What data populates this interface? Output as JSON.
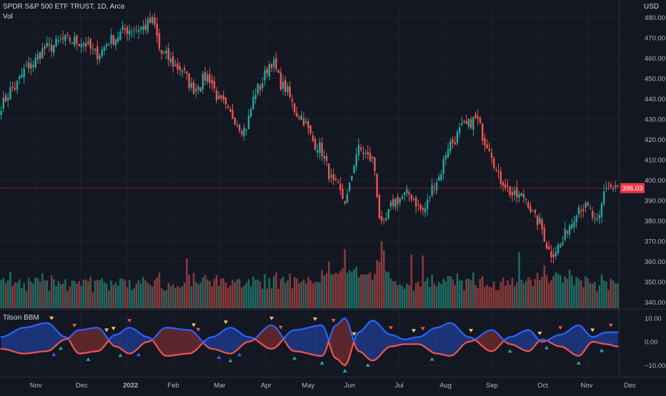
{
  "header": {
    "title": "SPDR S&P 500 ETF TRUST, 1D, Arca",
    "volume_label": "Vol",
    "indicator_label": "Tilson BBM",
    "price_unit": "USD"
  },
  "colors": {
    "background": "#131722",
    "up": "#26a69a",
    "down": "#ef5350",
    "up_volume": "#1f6b63",
    "down_volume": "#8a3a3a",
    "grid": "#1e222d",
    "last_price": "#f23645",
    "bbm_blue": "#2962ff",
    "bbm_red": "#ef5350",
    "bbm_blue_fill": "#1e3a8a",
    "bbm_red_fill": "#6b2a2e",
    "signal_yellow": "#f5c26b",
    "signal_red": "#ef5350",
    "signal_green": "#26a69a",
    "signal_blue": "#2962ff"
  },
  "chart_data": [
    {
      "type": "candlestick",
      "title": "SPDR S&P 500 ETF TRUST, 1D, Arca",
      "price_axis_ticks": [
        "480.00",
        "470.00",
        "460.00",
        "450.00",
        "440.00",
        "430.00",
        "420.00",
        "410.00",
        "400.00",
        "390.00",
        "380.00",
        "370.00",
        "360.00",
        "350.00",
        "340.00"
      ],
      "price_axis_values": [
        480,
        470,
        460,
        450,
        440,
        430,
        420,
        410,
        400,
        390,
        380,
        370,
        360,
        350,
        340
      ],
      "ylim": [
        337,
        485
      ],
      "last_price": "396.03",
      "last_price_value": 396.03,
      "time_axis_labels": [
        "Nov",
        "Dec",
        "2022",
        "Feb",
        "Mar",
        "Apr",
        "May",
        "Jun",
        "Jul",
        "Aug",
        "Sep",
        "Oct",
        "Nov",
        "Dec"
      ],
      "bar_count": 270,
      "anchors": [
        [
          0,
          437
        ],
        [
          5,
          445
        ],
        [
          12,
          456
        ],
        [
          20,
          465
        ],
        [
          28,
          469
        ],
        [
          35,
          468
        ],
        [
          42,
          462
        ],
        [
          48,
          469
        ],
        [
          55,
          474
        ],
        [
          62,
          475
        ],
        [
          66,
          478
        ],
        [
          70,
          462
        ],
        [
          78,
          455
        ],
        [
          84,
          445
        ],
        [
          90,
          451
        ],
        [
          96,
          438
        ],
        [
          100,
          432
        ],
        [
          106,
          425
        ],
        [
          112,
          445
        ],
        [
          118,
          458
        ],
        [
          123,
          446
        ],
        [
          130,
          432
        ],
        [
          138,
          417
        ],
        [
          146,
          397
        ],
        [
          150,
          390
        ],
        [
          156,
          415
        ],
        [
          162,
          410
        ],
        [
          166,
          377
        ],
        [
          172,
          390
        ],
        [
          178,
          393
        ],
        [
          184,
          385
        ],
        [
          190,
          400
        ],
        [
          196,
          418
        ],
        [
          202,
          426
        ],
        [
          207,
          430
        ],
        [
          212,
          418
        ],
        [
          218,
          400
        ],
        [
          224,
          392
        ],
        [
          228,
          392
        ],
        [
          234,
          380
        ],
        [
          240,
          364
        ],
        [
          244,
          368
        ],
        [
          248,
          378
        ],
        [
          252,
          387
        ],
        [
          256,
          386
        ],
        [
          260,
          378
        ],
        [
          264,
          397
        ],
        [
          269,
          396
        ]
      ],
      "volume_note": "volume histogram, colored by candle direction"
    },
    {
      "type": "line",
      "title": "Tilson BBM",
      "y_axis_ticks": [
        "10.00",
        "0.00",
        "−10.00"
      ],
      "y_axis_values": [
        10,
        0,
        -10
      ],
      "ylim": [
        -13,
        13
      ],
      "series": [
        {
          "values_note": "blue T3 line",
          "color": "blue"
        },
        {
          "values_note": "red T3 line",
          "color": "red"
        }
      ],
      "blue_anchors": [
        [
          0,
          2
        ],
        [
          10,
          6
        ],
        [
          20,
          8
        ],
        [
          28,
          2
        ],
        [
          34,
          -5
        ],
        [
          42,
          -4
        ],
        [
          50,
          3
        ],
        [
          56,
          6
        ],
        [
          64,
          2
        ],
        [
          72,
          -6
        ],
        [
          82,
          -5
        ],
        [
          92,
          2
        ],
        [
          100,
          6
        ],
        [
          108,
          2
        ],
        [
          118,
          -3
        ],
        [
          128,
          5
        ],
        [
          140,
          7
        ],
        [
          146,
          -7
        ],
        [
          150,
          -10
        ],
        [
          156,
          4
        ],
        [
          162,
          9
        ],
        [
          170,
          3
        ],
        [
          176,
          1
        ],
        [
          182,
          2
        ],
        [
          190,
          6
        ],
        [
          196,
          8
        ],
        [
          204,
          2
        ],
        [
          214,
          -4
        ],
        [
          222,
          2
        ],
        [
          230,
          5
        ],
        [
          236,
          0
        ],
        [
          244,
          3
        ],
        [
          252,
          7
        ],
        [
          258,
          2
        ],
        [
          264,
          4
        ],
        [
          269,
          4
        ]
      ],
      "red_anchors": [
        [
          0,
          -3
        ],
        [
          10,
          -5
        ],
        [
          20,
          -4
        ],
        [
          28,
          1
        ],
        [
          34,
          5
        ],
        [
          42,
          6
        ],
        [
          50,
          -2
        ],
        [
          56,
          -5
        ],
        [
          64,
          0
        ],
        [
          72,
          6
        ],
        [
          82,
          5
        ],
        [
          92,
          -3
        ],
        [
          100,
          -5
        ],
        [
          108,
          0
        ],
        [
          118,
          7
        ],
        [
          128,
          -4
        ],
        [
          140,
          -6
        ],
        [
          146,
          7
        ],
        [
          150,
          10
        ],
        [
          156,
          -4
        ],
        [
          162,
          -8
        ],
        [
          170,
          -2
        ],
        [
          176,
          -1
        ],
        [
          182,
          -1
        ],
        [
          190,
          -5
        ],
        [
          196,
          -6
        ],
        [
          204,
          0
        ],
        [
          214,
          5
        ],
        [
          222,
          -1
        ],
        [
          230,
          -4
        ],
        [
          236,
          1
        ],
        [
          244,
          -2
        ],
        [
          252,
          -6
        ],
        [
          258,
          0
        ],
        [
          264,
          -1
        ],
        [
          269,
          -2
        ]
      ],
      "signals": [
        {
          "i": 22,
          "kind": "down",
          "c": "yellow"
        },
        {
          "i": 23,
          "kind": "up",
          "c": "blue"
        },
        {
          "i": 26,
          "kind": "up",
          "c": "green"
        },
        {
          "i": 32,
          "kind": "down",
          "c": "red"
        },
        {
          "i": 38,
          "kind": "up",
          "c": "green"
        },
        {
          "i": 46,
          "kind": "down",
          "c": "yellow"
        },
        {
          "i": 49,
          "kind": "down",
          "c": "yellow"
        },
        {
          "i": 52,
          "kind": "up",
          "c": "green"
        },
        {
          "i": 56,
          "kind": "down",
          "c": "red"
        },
        {
          "i": 60,
          "kind": "up",
          "c": "blue"
        },
        {
          "i": 84,
          "kind": "down",
          "c": "yellow"
        },
        {
          "i": 86,
          "kind": "down",
          "c": "red"
        },
        {
          "i": 95,
          "kind": "up",
          "c": "blue"
        },
        {
          "i": 98,
          "kind": "down",
          "c": "yellow"
        },
        {
          "i": 100,
          "kind": "up",
          "c": "green"
        },
        {
          "i": 104,
          "kind": "up",
          "c": "blue"
        },
        {
          "i": 118,
          "kind": "down",
          "c": "yellow"
        },
        {
          "i": 122,
          "kind": "down",
          "c": "red"
        },
        {
          "i": 128,
          "kind": "up",
          "c": "green"
        },
        {
          "i": 137,
          "kind": "down",
          "c": "yellow"
        },
        {
          "i": 140,
          "kind": "up",
          "c": "green"
        },
        {
          "i": 145,
          "kind": "down",
          "c": "red"
        },
        {
          "i": 150,
          "kind": "up",
          "c": "green"
        },
        {
          "i": 154,
          "kind": "down",
          "c": "yellow"
        },
        {
          "i": 160,
          "kind": "up",
          "c": "green"
        },
        {
          "i": 170,
          "kind": "down",
          "c": "red"
        },
        {
          "i": 180,
          "kind": "down",
          "c": "yellow"
        },
        {
          "i": 184,
          "kind": "down",
          "c": "red"
        },
        {
          "i": 188,
          "kind": "up",
          "c": "green"
        },
        {
          "i": 205,
          "kind": "down",
          "c": "yellow"
        },
        {
          "i": 222,
          "kind": "up",
          "c": "green"
        },
        {
          "i": 235,
          "kind": "down",
          "c": "yellow"
        },
        {
          "i": 238,
          "kind": "up",
          "c": "green"
        },
        {
          "i": 244,
          "kind": "down",
          "c": "red"
        },
        {
          "i": 252,
          "kind": "up",
          "c": "green"
        },
        {
          "i": 258,
          "kind": "down",
          "c": "yellow"
        },
        {
          "i": 262,
          "kind": "up",
          "c": "green"
        },
        {
          "i": 266,
          "kind": "down",
          "c": "red"
        }
      ]
    }
  ]
}
